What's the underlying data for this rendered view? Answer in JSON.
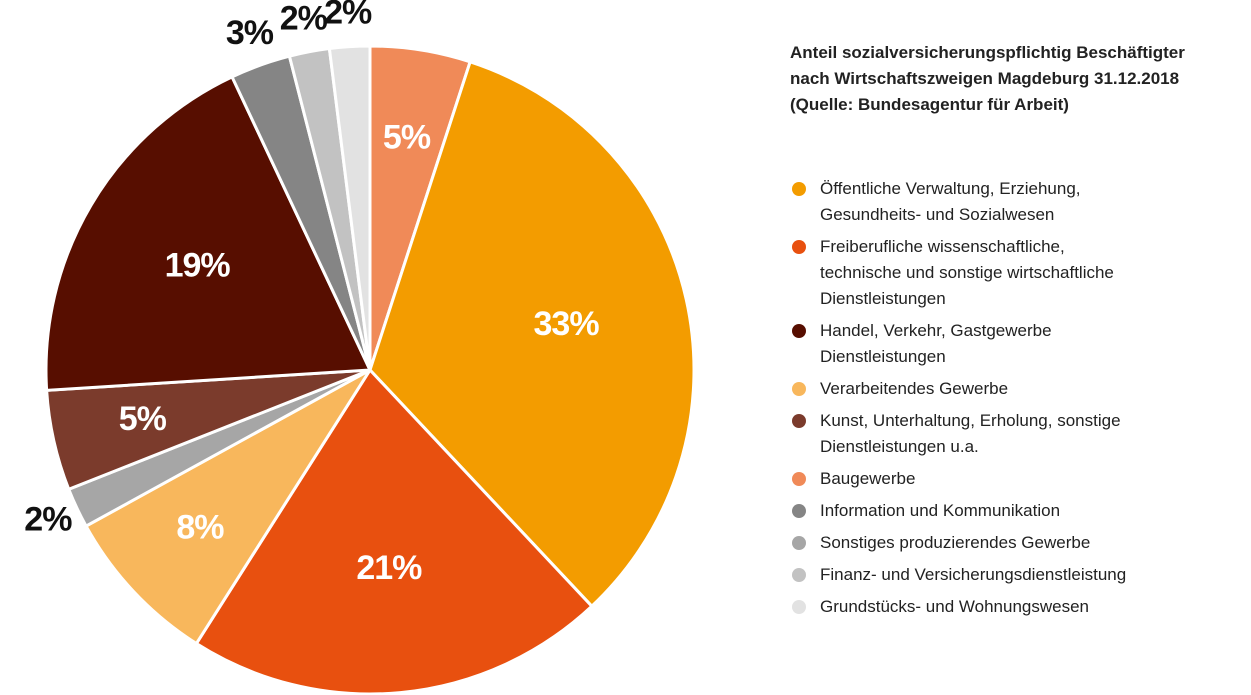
{
  "chart_data": {
    "type": "pie",
    "title": "Anteil sozialversicherungspflichtig Beschäftigter\nnach Wirtschaftszweigen Magdeburg 31.12.2018\n(Quelle: Bundesagentur für Arbeit)",
    "categories": [
      "Baugewerbe",
      "Öffentliche Verwaltung, Erziehung,\nGesundheits- und Sozialwesen",
      "Freiberufliche wissenschaftliche,\ntechnische und sonstige wirtschaftliche\nDienstleistungen",
      "Verarbeitendes Gewerbe",
      "Sonstiges produzierendes Gewerbe",
      "Kunst, Unterhaltung, Erholung, sonstige\nDienstleistungen u.a.",
      "Handel, Verkehr, Gastgewerbe\nDienstleistungen",
      "Information und  Kommunikation",
      "Finanz- und Versicherungsdienstleistung",
      "Grundstücks- und Wohnungswesen"
    ],
    "values": [
      5,
      33,
      21,
      8,
      2,
      5,
      19,
      3,
      2,
      2
    ],
    "value_labels": [
      "5%",
      "33%",
      "21%",
      "8%",
      "2%",
      "5%",
      "19%",
      "3%",
      "2%",
      "2%"
    ],
    "colors": [
      "#f08a58",
      "#f39c00",
      "#e8500f",
      "#f8b75c",
      "#a6a6a6",
      "#7b3b2c",
      "#570e00",
      "#858585",
      "#c2c2c2",
      "#e2e2e2"
    ]
  }
}
